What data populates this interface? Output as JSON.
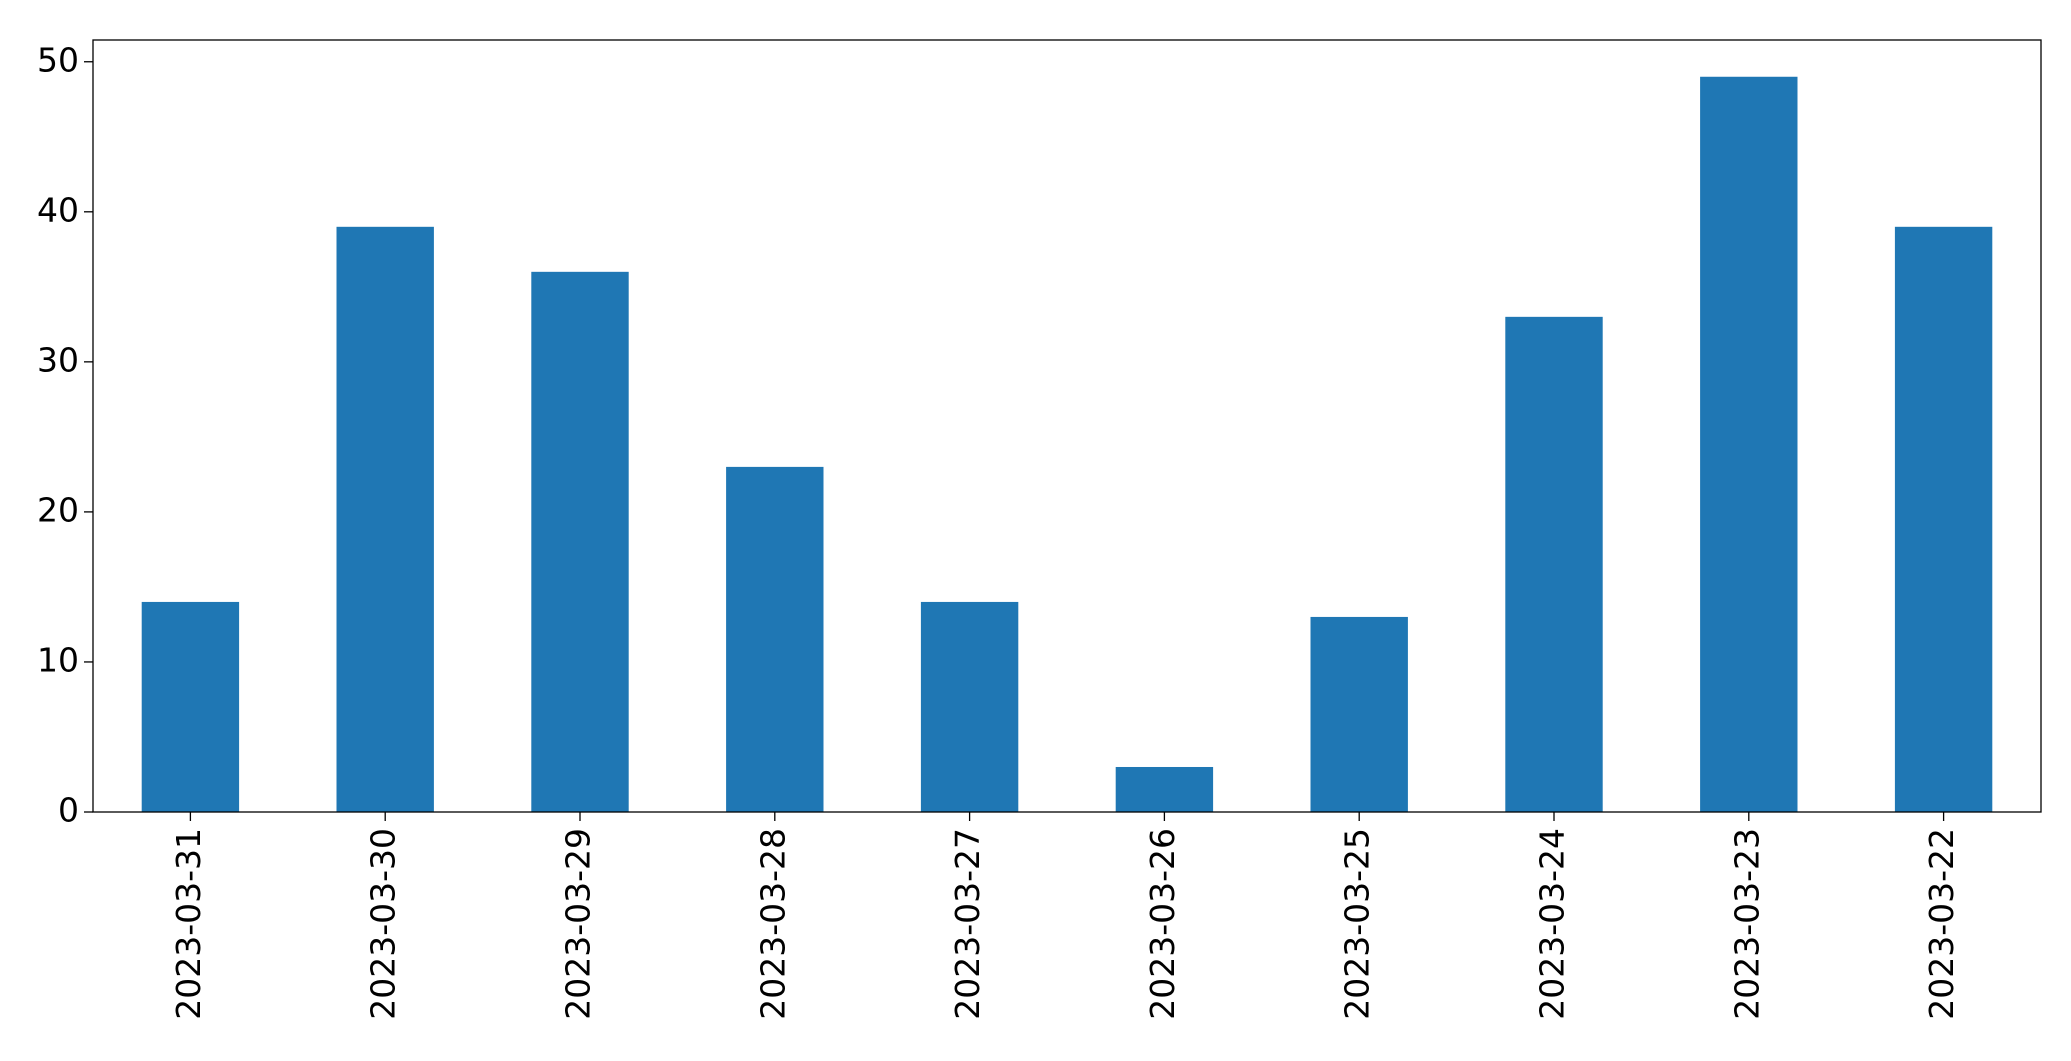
{
  "chart_data": {
    "type": "bar",
    "categories": [
      "2023-03-31",
      "2023-03-30",
      "2023-03-29",
      "2023-03-28",
      "2023-03-27",
      "2023-03-26",
      "2023-03-25",
      "2023-03-24",
      "2023-03-23",
      "2023-03-22"
    ],
    "values": [
      14,
      39,
      36,
      23,
      14,
      3,
      13,
      33,
      49,
      39
    ],
    "color": "#1f77b4",
    "ylim": [
      0,
      51.45
    ],
    "yticks": [
      0,
      10,
      20,
      30,
      40,
      50
    ],
    "grid": false
  }
}
